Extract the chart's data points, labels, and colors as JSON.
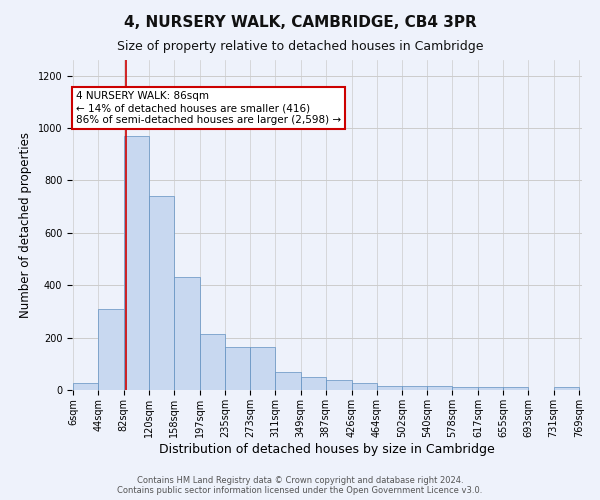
{
  "title": "4, NURSERY WALK, CAMBRIDGE, CB4 3PR",
  "subtitle": "Size of property relative to detached houses in Cambridge",
  "xlabel": "Distribution of detached houses by size in Cambridge",
  "ylabel": "Number of detached properties",
  "bins": [
    6,
    44,
    82,
    120,
    158,
    197,
    235,
    273,
    311,
    349,
    387,
    426,
    464,
    502,
    540,
    578,
    617,
    655,
    693,
    731,
    769
  ],
  "values": [
    25,
    310,
    970,
    740,
    430,
    215,
    165,
    165,
    70,
    50,
    40,
    25,
    15,
    15,
    15,
    13,
    10,
    10,
    0,
    10
  ],
  "bar_color": "#c8d8f0",
  "bar_edge_color": "#6090c0",
  "vline_x": 86,
  "vline_color": "#cc0000",
  "annotation_text": "4 NURSERY WALK: 86sqm\n← 14% of detached houses are smaller (416)\n86% of semi-detached houses are larger (2,598) →",
  "annotation_box_color": "#ffffff",
  "annotation_box_edge": "#cc0000",
  "ylim": [
    0,
    1260
  ],
  "yticks": [
    0,
    200,
    400,
    600,
    800,
    1000,
    1200
  ],
  "grid_color": "#cccccc",
  "background_color": "#eef2fb",
  "footer_text": "Contains HM Land Registry data © Crown copyright and database right 2024.\nContains public sector information licensed under the Open Government Licence v3.0.",
  "title_fontsize": 11,
  "subtitle_fontsize": 9,
  "xlabel_fontsize": 9,
  "ylabel_fontsize": 8.5,
  "tick_fontsize": 7,
  "footer_fontsize": 6,
  "annot_fontsize": 7.5
}
